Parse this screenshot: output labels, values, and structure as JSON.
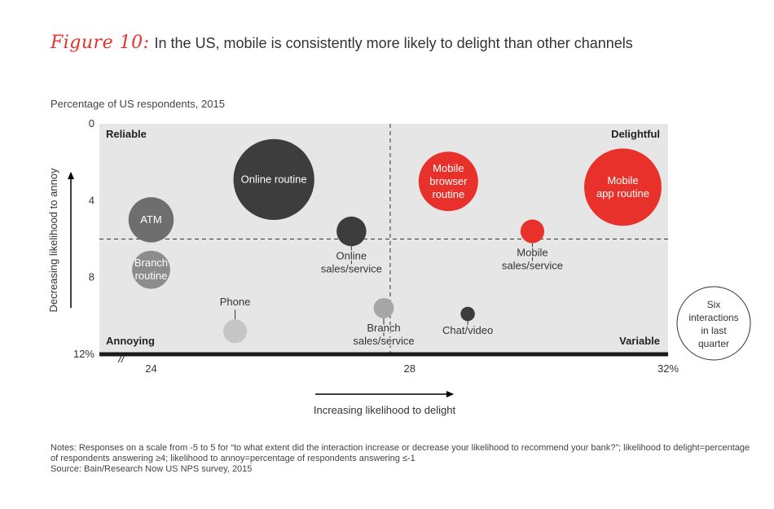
{
  "figure_label": "Figure 10:",
  "figure_title": "In the US, mobile is consistently more likely to delight than other channels",
  "subtitle": "Percentage of US respondents, 2015",
  "notes": [
    "Notes: Responses on a scale from -5 to 5 for “to what extent did the interaction increase or decrease your likelihood to recommend your bank?”; likelihood to delight=percentage",
    "of respondents answering ≥4; likelihood to annoy=percentage of respondents answering ≤-1",
    "Source: Bain/Research Now US NPS survey, 2015"
  ],
  "legend_label": "Six interactions in last quarter",
  "chart_data": {
    "type": "scatter",
    "bubble": true,
    "xlabel": "Increasing likelihood to delight",
    "ylabel": "Decreasing likelihood to annoy",
    "xlim": [
      23.2,
      32
    ],
    "ylim": [
      0,
      12
    ],
    "y_reversed": true,
    "x_ticks": [
      24,
      28,
      32
    ],
    "x_tick_labels": [
      "24",
      "28",
      "32%"
    ],
    "y_ticks": [
      0,
      4,
      8,
      12
    ],
    "y_tick_labels": [
      "0",
      "4",
      "8",
      "12%"
    ],
    "x_axis_break": true,
    "quadrant_divider_x": 27.7,
    "quadrant_divider_y": 6,
    "quadrants": {
      "top_left": "Reliable",
      "top_right": "Delightful",
      "bottom_left": "Annoying",
      "bottom_right": "Variable"
    },
    "grid": false,
    "points": [
      {
        "label": "Online routine",
        "x": 25.9,
        "y": 2.9,
        "size": 6.8,
        "color": "#3d3d3d",
        "label_pos": "inside"
      },
      {
        "label": "ATM",
        "x": 24.0,
        "y": 5.0,
        "size": 3.8,
        "color": "#6e6e6e",
        "label_pos": "inside"
      },
      {
        "label": "Branch routine",
        "x": 24.0,
        "y": 7.6,
        "size": 3.2,
        "color": "#8c8c8c",
        "label_pos": "inside"
      },
      {
        "label": "Phone",
        "x": 25.3,
        "y": 10.8,
        "size": 2.0,
        "color": "#c6c6c6",
        "label_pos": "above"
      },
      {
        "label": "Online sales/service",
        "x": 27.1,
        "y": 5.6,
        "size": 2.5,
        "color": "#3d3d3d",
        "label_pos": "below"
      },
      {
        "label": "Branch sales/service",
        "x": 27.6,
        "y": 9.6,
        "size": 1.7,
        "color": "#a6a6a6",
        "label_pos": "below"
      },
      {
        "label": "Chat/video",
        "x": 28.9,
        "y": 9.9,
        "size": 1.2,
        "color": "#3d3d3d",
        "label_pos": "below"
      },
      {
        "label": "Mobile browser routine",
        "x": 28.6,
        "y": 3.0,
        "size": 5.0,
        "color": "#e8312b",
        "label_pos": "inside"
      },
      {
        "label": "Mobile sales/service",
        "x": 29.9,
        "y": 5.6,
        "size": 2.0,
        "color": "#e8312b",
        "label_pos": "below"
      },
      {
        "label": "Mobile app routine",
        "x": 31.3,
        "y": 3.3,
        "size": 6.5,
        "color": "#e8312b",
        "label_pos": "inside"
      }
    ]
  }
}
